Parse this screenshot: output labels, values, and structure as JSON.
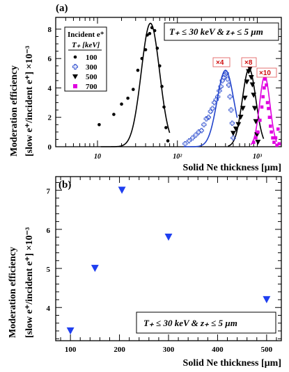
{
  "chart_data": [
    {
      "panel_label": "(a)",
      "type": "scatter",
      "xscale": "log",
      "xlim": [
        3,
        2000
      ],
      "ylim": [
        0,
        8.8
      ],
      "xlabel": "Solid Ne thickness [µm]",
      "ylabel_line1": "Moderation efficiency",
      "ylabel_line2": "[slow e⁺/incident e⁺] ×10⁻³",
      "y_ticks": [
        0,
        2,
        4,
        6,
        8
      ],
      "x_tick_labels": [
        {
          "value": 10,
          "text": "10"
        },
        {
          "value": 100,
          "text": "10²"
        },
        {
          "value": 1000,
          "text": "10³"
        }
      ],
      "annotation": "T₊ ≤ 30 keV   &  z₊ ≤ 5 µm",
      "legend": {
        "title": "Incident e⁺",
        "subtitle": "T₊ [keV]",
        "entries": [
          "100",
          "300",
          "500",
          "700"
        ]
      },
      "series": [
        {
          "name": "100",
          "color": "#000000",
          "marker": "circle",
          "points": [
            [
              10.5,
              1.5
            ],
            [
              16,
              2.2
            ],
            [
              20,
              2.9
            ],
            [
              24,
              3.3
            ],
            [
              28,
              3.9
            ],
            [
              32,
              5.2
            ],
            [
              36,
              6.0
            ],
            [
              40,
              6.6
            ],
            [
              42,
              7.6
            ],
            [
              45,
              7.7
            ],
            [
              48,
              8.1
            ],
            [
              52,
              7.9
            ],
            [
              56,
              6.7
            ],
            [
              60,
              5.5
            ],
            [
              64,
              4.1
            ],
            [
              68,
              2.7
            ],
            [
              72,
              1.3
            ],
            [
              76,
              0.4
            ]
          ],
          "fit_curve": {
            "peak_x": 46,
            "peak_y": 8.4,
            "log_sigma": 0.115,
            "x_range": [
              11,
              80
            ]
          }
        },
        {
          "name": "300",
          "multiplier_label": "×4",
          "color": "#2244cc",
          "marker": "open-cross",
          "points": [
            [
              125,
              0.2
            ],
            [
              140,
              0.4
            ],
            [
              155,
              0.6
            ],
            [
              170,
              0.8
            ],
            [
              185,
              1.0
            ],
            [
              200,
              1.1
            ],
            [
              215,
              1.5
            ],
            [
              230,
              1.9
            ],
            [
              245,
              2.0
            ],
            [
              260,
              2.4
            ],
            [
              275,
              2.6
            ],
            [
              290,
              3.0
            ],
            [
              305,
              3.2
            ],
            [
              320,
              3.4
            ],
            [
              335,
              3.8
            ],
            [
              350,
              4.1
            ],
            [
              365,
              4.5
            ],
            [
              380,
              4.7
            ],
            [
              395,
              4.9
            ],
            [
              410,
              5.0
            ],
            [
              425,
              4.6
            ],
            [
              440,
              4.2
            ],
            [
              455,
              3.4
            ],
            [
              470,
              2.5
            ],
            [
              485,
              1.6
            ],
            [
              500,
              0.6
            ]
          ],
          "fit_curve": {
            "peak_x": 400,
            "peak_y": 5.2,
            "log_sigma": 0.105,
            "x_range": [
              120,
              560
            ]
          }
        },
        {
          "name": "500",
          "multiplier_label": "×8",
          "color": "#000000",
          "marker": "triangle-down",
          "points": [
            [
              500,
              0.9
            ],
            [
              540,
              1.2
            ],
            [
              580,
              1.5
            ],
            [
              620,
              2.0
            ],
            [
              660,
              2.6
            ],
            [
              700,
              3.3
            ],
            [
              740,
              4.4
            ],
            [
              780,
              5.1
            ],
            [
              810,
              5.3
            ],
            [
              840,
              4.7
            ],
            [
              870,
              4.2
            ],
            [
              900,
              3.5
            ],
            [
              930,
              2.6
            ],
            [
              960,
              1.7
            ],
            [
              990,
              0.8
            ],
            [
              1020,
              0.3
            ]
          ],
          "fit_curve": {
            "peak_x": 790,
            "peak_y": 5.3,
            "log_sigma": 0.085,
            "x_range": [
              430,
              1200
            ]
          }
        },
        {
          "name": "700",
          "multiplier_label": "×10",
          "color": "#e000e0",
          "marker": "square",
          "points": [
            [
              900,
              0.3
            ],
            [
              960,
              0.6
            ],
            [
              1020,
              1.0
            ],
            [
              1080,
              1.8
            ],
            [
              1140,
              2.7
            ],
            [
              1180,
              3.4
            ],
            [
              1220,
              4.0
            ],
            [
              1260,
              4.6
            ],
            [
              1300,
              4.2
            ],
            [
              1340,
              3.0
            ],
            [
              1380,
              2.6
            ],
            [
              1420,
              2.0
            ],
            [
              1460,
              1.4
            ],
            [
              1500,
              1.0
            ],
            [
              1560,
              0.6
            ],
            [
              1620,
              0.3
            ],
            [
              1700,
              0.6
            ],
            [
              1760,
              0.1
            ],
            [
              1820,
              1.2
            ],
            [
              1880,
              0.2
            ]
          ],
          "fit_curve": {
            "peak_x": 1240,
            "peak_y": 4.8,
            "log_sigma": 0.065,
            "x_range": [
              830,
              1750
            ]
          }
        }
      ]
    },
    {
      "panel_label": "(b)",
      "type": "scatter",
      "xlim": [
        70,
        530
      ],
      "ylim": [
        3.15,
        7.35
      ],
      "xlabel": "Solid Ne thickness [µm]",
      "ylabel_line1": "Moderation efficiency",
      "ylabel_line2": "[slow e⁺/incident e⁺] ×10⁻³",
      "x_ticks": [
        100,
        200,
        300,
        400,
        500
      ],
      "y_ticks": [
        4,
        5,
        6,
        7
      ],
      "annotation": "T₊ ≤ 30 keV   &  z₊ ≤ 5 µm",
      "series": [
        {
          "name": "",
          "color": "#1f3ff0",
          "marker": "triangle-down",
          "points": [
            [
              100,
              3.4
            ],
            [
              150,
              5.0
            ],
            [
              205,
              7.0
            ],
            [
              300,
              5.8
            ],
            [
              500,
              4.2
            ]
          ]
        }
      ]
    }
  ]
}
